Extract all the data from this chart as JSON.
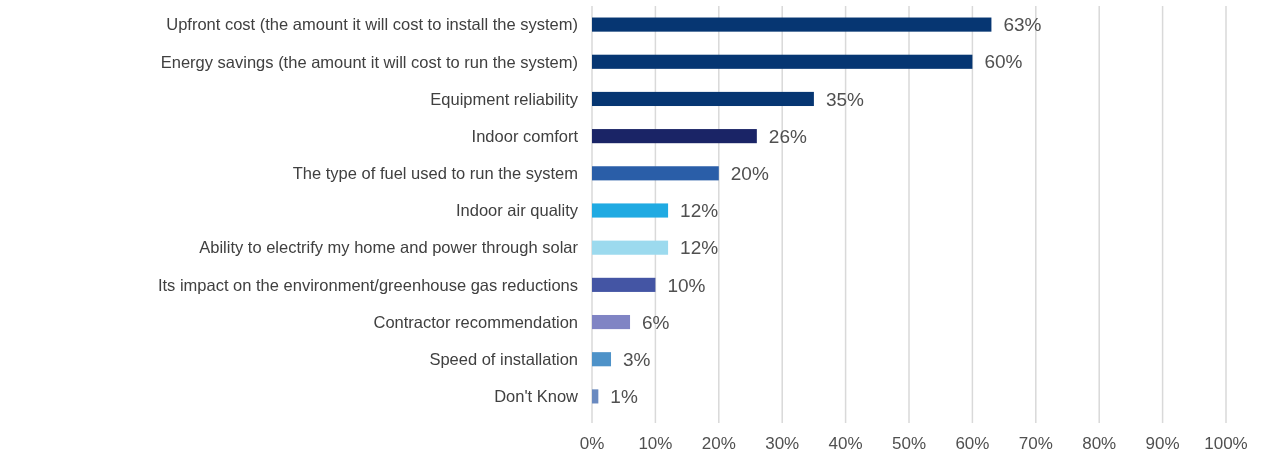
{
  "chart_data": {
    "type": "bar",
    "orientation": "horizontal",
    "categories": [
      "Upfront cost (the amount it will cost to install the system)",
      "Energy savings (the amount it will cost to run the system)",
      "Equipment reliability",
      "Indoor comfort",
      "The type of fuel used to run the system",
      "Indoor air quality",
      "Ability to electrify my home and power through solar",
      "Its impact on the environment/greenhouse gas reductions",
      "Contractor recommendation",
      "Speed of installation",
      "Don't Know"
    ],
    "values": [
      63,
      60,
      35,
      26,
      20,
      12,
      12,
      10,
      6,
      3,
      1
    ],
    "colors": [
      "#063672",
      "#063672",
      "#063672",
      "#1a2466",
      "#2a5ea8",
      "#20aae2",
      "#9cdaee",
      "#4455a4",
      "#8084c4",
      "#4e92c8",
      "#6a8ac0"
    ],
    "value_labels": [
      "63%",
      "60%",
      "35%",
      "26%",
      "20%",
      "12%",
      "12%",
      "10%",
      "6%",
      "3%",
      "1%"
    ],
    "xlim": [
      0,
      100
    ],
    "xticks": [
      {
        "value": 0,
        "label": "0%"
      },
      {
        "value": 10,
        "label": "10%"
      },
      {
        "value": 20,
        "label": "20%"
      },
      {
        "value": 30,
        "label": "30%"
      },
      {
        "value": 40,
        "label": "40%"
      },
      {
        "value": 50,
        "label": "50%"
      },
      {
        "value": 60,
        "label": "60%"
      },
      {
        "value": 70,
        "label": "70%"
      },
      {
        "value": 80,
        "label": "80%"
      },
      {
        "value": 90,
        "label": "90%"
      },
      {
        "value": 100,
        "label": "100%"
      }
    ],
    "grid": "x"
  }
}
